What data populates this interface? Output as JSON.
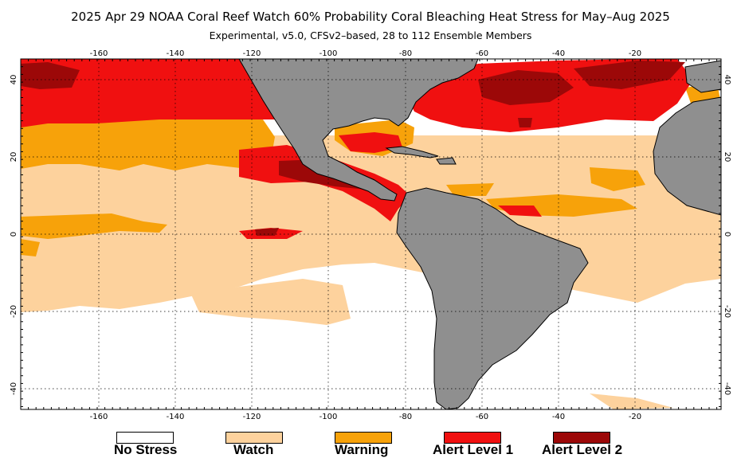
{
  "title": "2025 Apr 29 NOAA Coral Reef Watch 60% Probability Coral Bleaching Heat Stress for May–Aug 2025",
  "subtitle": "Experimental, v5.0, CFSv2–based, 28 to 112 Ensemble Members",
  "map": {
    "lon_ticks": [
      "-160",
      "-140",
      "-120",
      "-100",
      "-80",
      "-60",
      "-40",
      "-20"
    ],
    "lat_ticks": [
      "40",
      "20",
      "0",
      "-20",
      "-40"
    ],
    "colors": {
      "ocean_none": "#ffffff",
      "land": "#8f8f8f",
      "watch": "#fdd29d",
      "warning": "#f7a20a",
      "alert1": "#f01010",
      "alert2": "#9c0808"
    }
  },
  "legend": [
    {
      "label": "No Stress",
      "color": "#ffffff"
    },
    {
      "label": "Watch",
      "color": "#fdd29d"
    },
    {
      "label": "Warning",
      "color": "#f7a20a"
    },
    {
      "label": "Alert Level 1",
      "color": "#f01010"
    },
    {
      "label": "Alert Level 2",
      "color": "#9c0808"
    }
  ]
}
